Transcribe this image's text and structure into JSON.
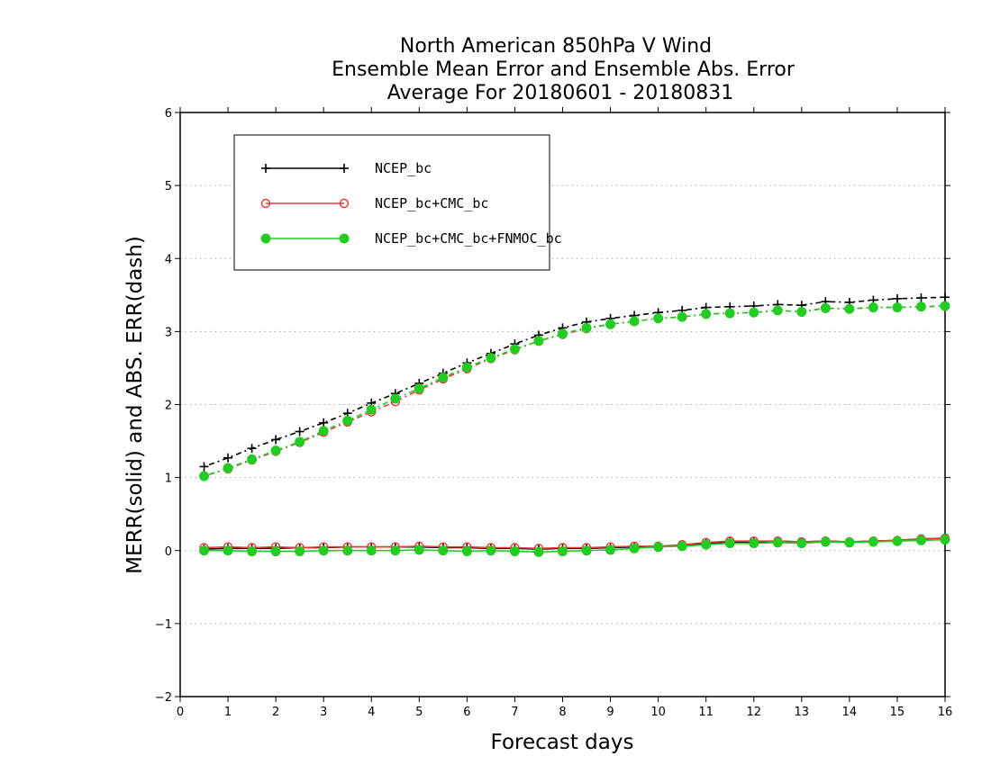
{
  "chart_data": {
    "type": "line",
    "title_lines": [
      "North American 850hPa V Wind",
      "Ensemble Mean Error and Ensemble Abs. Error",
      "Average For 20180601 - 20180831"
    ],
    "xlabel": "Forecast days",
    "ylabel": "MERR(solid) and ABS. ERR(dash)",
    "xlim": [
      0,
      16
    ],
    "ylim": [
      -2,
      6
    ],
    "xticks": [
      0,
      1,
      2,
      3,
      4,
      5,
      6,
      7,
      8,
      9,
      10,
      11,
      12,
      13,
      14,
      15,
      16
    ],
    "yticks": [
      -2,
      -1,
      0,
      1,
      2,
      3,
      4,
      5,
      6
    ],
    "grid": "horizontal-dotted",
    "legend_position": "top-left",
    "x": [
      0.5,
      1,
      1.5,
      2,
      2.5,
      3,
      3.5,
      4,
      4.5,
      5,
      5.5,
      6,
      6.5,
      7,
      7.5,
      8,
      8.5,
      9,
      9.5,
      10,
      10.5,
      11,
      11.5,
      12,
      12.5,
      13,
      13.5,
      14,
      14.5,
      15,
      15.5,
      16
    ],
    "series": [
      {
        "name": "NCEP_bc",
        "color": "#000000",
        "marker": "plus",
        "merr": [
          0.02,
          0.03,
          0.03,
          0.03,
          0.04,
          0.04,
          0.05,
          0.05,
          0.05,
          0.05,
          0.04,
          0.04,
          0.03,
          0.03,
          0.02,
          0.03,
          0.03,
          0.04,
          0.05,
          0.06,
          0.07,
          0.1,
          0.12,
          0.12,
          0.13,
          0.12,
          0.13,
          0.12,
          0.13,
          0.14,
          0.16,
          0.17
        ],
        "abs_err": [
          1.15,
          1.27,
          1.4,
          1.52,
          1.63,
          1.75,
          1.88,
          2.02,
          2.15,
          2.29,
          2.43,
          2.57,
          2.7,
          2.83,
          2.95,
          3.05,
          3.13,
          3.18,
          3.22,
          3.26,
          3.29,
          3.33,
          3.34,
          3.35,
          3.37,
          3.36,
          3.41,
          3.4,
          3.43,
          3.45,
          3.46,
          3.47
        ]
      },
      {
        "name": "NCEP_bc+CMC_bc",
        "color": "#e83a3a",
        "marker": "open-circle",
        "merr": [
          0.04,
          0.05,
          0.04,
          0.05,
          0.04,
          0.05,
          0.05,
          0.05,
          0.05,
          0.06,
          0.05,
          0.05,
          0.04,
          0.04,
          0.03,
          0.04,
          0.04,
          0.05,
          0.06,
          0.06,
          0.08,
          0.11,
          0.13,
          0.13,
          0.13,
          0.12,
          0.13,
          0.12,
          0.13,
          0.14,
          0.16,
          0.17
        ],
        "abs_err": [
          1.02,
          1.12,
          1.24,
          1.36,
          1.48,
          1.62,
          1.76,
          1.9,
          2.04,
          2.2,
          2.35,
          2.49,
          2.63,
          2.75,
          2.87,
          2.96,
          3.04,
          3.1,
          3.14,
          3.18,
          3.2,
          3.24,
          3.25,
          3.26,
          3.29,
          3.27,
          3.32,
          3.31,
          3.33,
          3.33,
          3.34,
          3.35
        ]
      },
      {
        "name": "NCEP_bc+CMC_bc+FNMOC_bc",
        "color": "#22cc22",
        "marker": "filled-circle",
        "merr": [
          0.0,
          0.0,
          -0.01,
          -0.01,
          -0.01,
          0.0,
          0.0,
          0.0,
          0.0,
          0.01,
          0.0,
          -0.01,
          0.0,
          -0.01,
          -0.02,
          -0.01,
          0.0,
          0.01,
          0.03,
          0.05,
          0.06,
          0.08,
          0.1,
          0.1,
          0.11,
          0.1,
          0.12,
          0.11,
          0.12,
          0.13,
          0.14,
          0.15
        ],
        "abs_err": [
          1.02,
          1.13,
          1.25,
          1.37,
          1.49,
          1.64,
          1.78,
          1.93,
          2.08,
          2.22,
          2.37,
          2.51,
          2.64,
          2.76,
          2.87,
          2.97,
          3.05,
          3.1,
          3.14,
          3.18,
          3.2,
          3.24,
          3.25,
          3.26,
          3.29,
          3.27,
          3.32,
          3.31,
          3.33,
          3.33,
          3.34,
          3.35
        ]
      }
    ]
  }
}
